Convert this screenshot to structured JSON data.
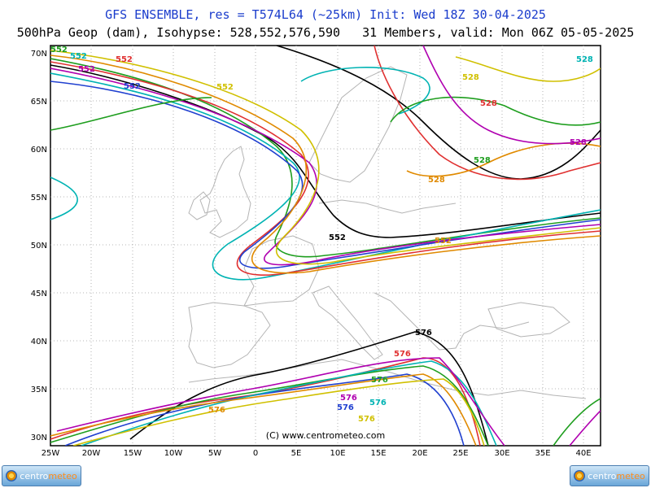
{
  "header": {
    "line1": "GFS ENSEMBLE, res = T574L64 (~25km)   Init: Wed 18Z 30-04-2025",
    "line2": "500hPa Geop (dam), Isohypse: 528,552,576,590   31 Members, valid: Mon 06Z 05-05-2025"
  },
  "axes": {
    "lat_ticks": [
      "70N",
      "65N",
      "60N",
      "55N",
      "50N",
      "45N",
      "40N",
      "35N",
      "30N"
    ],
    "lon_ticks": [
      "25W",
      "20W",
      "15W",
      "10W",
      "5W",
      "0",
      "5E",
      "10E",
      "15E",
      "20E",
      "25E",
      "30E",
      "35E",
      "40E"
    ]
  },
  "copyright": "(C) www.centrometeo.com",
  "logos": {
    "left_text": "centro",
    "left_accent": "meteo",
    "right_text": "centro",
    "right_accent": "meteo"
  },
  "isohypse_labels": [
    {
      "text": "552",
      "color": "#1e9e1e"
    },
    {
      "text": "552",
      "color": "#00b3b3"
    },
    {
      "text": "552",
      "color": "#e03030"
    },
    {
      "text": "552",
      "color": "#2040d0"
    },
    {
      "text": "552",
      "color": "#b000b0"
    },
    {
      "text": "552",
      "color": "#000000"
    },
    {
      "text": "552",
      "color": "#e08a00"
    },
    {
      "text": "552",
      "color": "#d0c000"
    },
    {
      "text": "528",
      "color": "#e03030"
    },
    {
      "text": "528",
      "color": "#00b3b3"
    },
    {
      "text": "528",
      "color": "#1e9e1e"
    },
    {
      "text": "528",
      "color": "#e08a00"
    },
    {
      "text": "528",
      "color": "#b000b0"
    },
    {
      "text": "528",
      "color": "#d0c000"
    },
    {
      "text": "576",
      "color": "#000000"
    },
    {
      "text": "576",
      "color": "#2040d0"
    },
    {
      "text": "576",
      "color": "#00b3b3"
    },
    {
      "text": "576",
      "color": "#e03030"
    },
    {
      "text": "576",
      "color": "#1e9e1e"
    },
    {
      "text": "576",
      "color": "#b000b0"
    },
    {
      "text": "576",
      "color": "#e08a00"
    },
    {
      "text": "576",
      "color": "#d0c000"
    }
  ],
  "colors": {
    "title_blue": "#1a3ccc",
    "coast": "#b4b4b4",
    "grid": "#a0a0a0"
  }
}
